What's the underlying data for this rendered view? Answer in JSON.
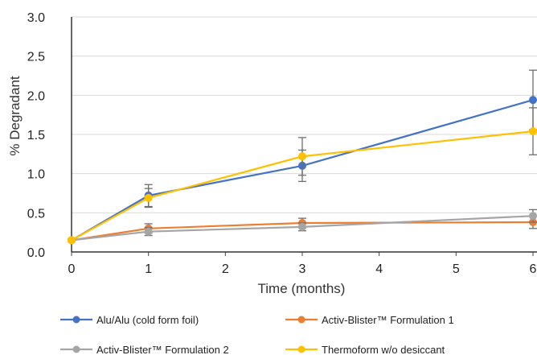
{
  "chart_data": {
    "type": "line",
    "xlabel": "Time (months)",
    "ylabel": "% Degradant",
    "xlim": [
      0,
      6
    ],
    "ylim": [
      0,
      3
    ],
    "x_ticks": [
      "0",
      "1",
      "2",
      "3",
      "4",
      "5",
      "6"
    ],
    "y_ticks": [
      "0.0",
      "0.5",
      "1.0",
      "1.5",
      "2.0",
      "2.5",
      "3.0"
    ],
    "grid": "horizontal",
    "legend_position": "bottom",
    "series": [
      {
        "name": "Alu/Alu (cold form foil)",
        "color": "#4472C4",
        "x": [
          0,
          1,
          3,
          6
        ],
        "y": [
          0.15,
          0.72,
          1.1,
          1.94
        ],
        "err": [
          0,
          0.14,
          0.2,
          0.38
        ]
      },
      {
        "name": "Activ-Blister™ Formulation 1",
        "color": "#ED7D31",
        "x": [
          0,
          1,
          3,
          6
        ],
        "y": [
          0.15,
          0.3,
          0.37,
          0.38
        ],
        "err": [
          0,
          0.06,
          0.06,
          0.08
        ]
      },
      {
        "name": "Activ-Blister™ Formulation 2",
        "color": "#A5A5A5",
        "x": [
          0,
          1,
          3,
          6
        ],
        "y": [
          0.15,
          0.26,
          0.32,
          0.46
        ],
        "err": [
          0,
          0.05,
          0.05,
          0.08
        ]
      },
      {
        "name": "Thermoform w/o desiccant",
        "color": "#FFC000",
        "x": [
          0,
          1,
          3,
          6
        ],
        "y": [
          0.15,
          0.69,
          1.22,
          1.54
        ],
        "err": [
          0,
          0.12,
          0.24,
          0.3
        ]
      }
    ]
  }
}
